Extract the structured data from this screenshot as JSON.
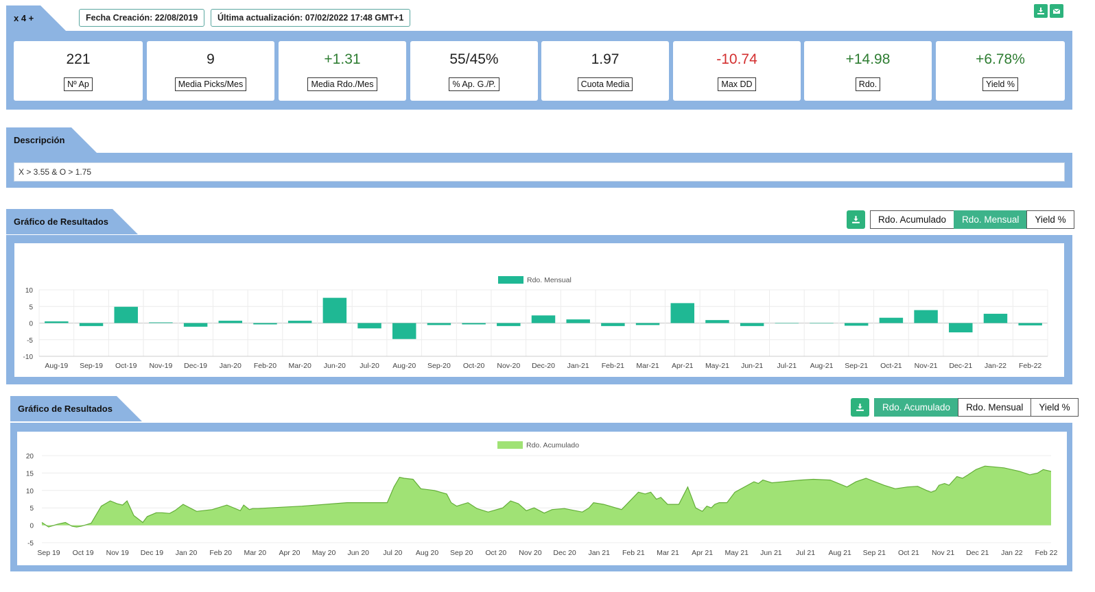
{
  "strategy": {
    "name": "x 4 +",
    "created": "Fecha Creación: 22/08/2019",
    "updated": "Última actualización: 07/02/2022 17:48 GMT+1"
  },
  "stats": [
    {
      "value": "221",
      "label": "Nº Ap",
      "tone": "neutral"
    },
    {
      "value": "9",
      "label": "Media Picks/Mes",
      "tone": "neutral"
    },
    {
      "value": "+1.31",
      "label": "Media Rdo./Mes",
      "tone": "pos"
    },
    {
      "value": "55/45%",
      "label": "% Ap. G./P.",
      "tone": "neutral"
    },
    {
      "value": "1.97",
      "label": "Cuota Media",
      "tone": "neutral"
    },
    {
      "value": "-10.74",
      "label": "Max DD",
      "tone": "neg"
    },
    {
      "value": "+14.98",
      "label": "Rdo.",
      "tone": "pos"
    },
    {
      "value": "+6.78%",
      "label": "Yield %",
      "tone": "pos"
    }
  ],
  "description": {
    "title": "Descripción",
    "text": "X > 3.55 & O > 1.75"
  },
  "chart1": {
    "title": "Gráfico de Resultados",
    "buttons": [
      "Rdo. Acumulado",
      "Rdo. Mensual",
      "Yield %"
    ],
    "active": 1
  },
  "chart2": {
    "title": "Gráfico de Resultados",
    "buttons": [
      "Rdo. Acumulado",
      "Rdo. Mensual",
      "Yield %"
    ],
    "active": 0
  },
  "colors": {
    "band": "#8db4e2",
    "accent": "#2db37d",
    "bar": "#1fb894",
    "area": "#a0e275",
    "areaLine": "#62ad37"
  },
  "chart_data": [
    {
      "type": "bar",
      "categories": [
        "Aug-19",
        "Sep-19",
        "Oct-19",
        "Nov-19",
        "Dec-19",
        "Jan-20",
        "Feb-20",
        "Mar-20",
        "Jun-20",
        "Jul-20",
        "Aug-20",
        "Sep-20",
        "Oct-20",
        "Nov-20",
        "Dec-20",
        "Jan-21",
        "Feb-21",
        "Mar-21",
        "Apr-21",
        "May-21",
        "Jun-21",
        "Jul-21",
        "Aug-21",
        "Sep-21",
        "Oct-21",
        "Nov-21",
        "Dec-21",
        "Jan-22",
        "Feb-22"
      ],
      "series": [
        {
          "name": "Rdo. Mensual",
          "values": [
            0.5,
            -0.9,
            4.9,
            0.2,
            -1.1,
            0.7,
            -0.4,
            0.7,
            7.6,
            -1.6,
            -4.8,
            -0.6,
            -0.4,
            -0.9,
            2.3,
            1.1,
            -0.9,
            -0.6,
            6.0,
            0.9,
            -0.9,
            0,
            0,
            -0.8,
            1.6,
            3.9,
            -2.8,
            2.8,
            -0.7
          ]
        }
      ],
      "ylim": [
        -10,
        10
      ],
      "yticks": [
        10,
        5,
        0,
        -5,
        -10
      ],
      "legend": "top-center"
    },
    {
      "type": "area",
      "x": [
        "2019-08-22",
        "2019-08-28",
        "2019-09-05",
        "2019-09-12",
        "2019-09-18",
        "2019-09-22",
        "2019-09-26",
        "2019-10-05",
        "2019-10-14",
        "2019-10-22",
        "2019-10-28",
        "2019-11-02",
        "2019-11-06",
        "2019-11-12",
        "2019-11-20",
        "2019-11-24",
        "2019-12-02",
        "2019-12-07",
        "2019-12-14",
        "2019-12-19",
        "2019-12-26",
        "2020-01-07",
        "2020-01-21",
        "2020-02-03",
        "2020-02-15",
        "2020-02-18",
        "2020-02-23",
        "2020-02-26",
        "2020-03-02",
        "2020-03-12",
        "2020-04-10",
        "2020-05-20",
        "2020-06-25",
        "2020-07-01",
        "2020-07-06",
        "2020-07-10",
        "2020-07-18",
        "2020-07-25",
        "2020-08-06",
        "2020-08-17",
        "2020-08-21",
        "2020-08-26",
        "2020-09-05",
        "2020-09-13",
        "2020-09-23",
        "2020-10-06",
        "2020-10-13",
        "2020-10-20",
        "2020-10-27",
        "2020-11-03",
        "2020-11-12",
        "2020-11-19",
        "2020-11-30",
        "2020-12-16",
        "2020-12-22",
        "2020-12-26",
        "2021-01-04",
        "2021-01-20",
        "2021-02-04",
        "2021-02-10",
        "2021-02-15",
        "2021-02-20",
        "2021-02-24",
        "2021-03-02",
        "2021-03-12",
        "2021-03-20",
        "2021-03-27",
        "2021-04-02",
        "2021-04-06",
        "2021-04-10",
        "2021-04-13",
        "2021-04-17",
        "2021-04-24",
        "2021-05-01",
        "2021-05-18",
        "2021-05-22",
        "2021-05-26",
        "2021-06-03",
        "2021-06-29",
        "2021-07-10",
        "2021-07-25",
        "2021-08-09",
        "2021-08-17",
        "2021-08-26",
        "2021-09-11",
        "2021-09-21",
        "2021-10-02",
        "2021-10-11",
        "2021-10-19",
        "2021-10-23",
        "2021-10-27",
        "2021-10-30",
        "2021-11-04",
        "2021-11-08",
        "2021-11-15",
        "2021-11-20",
        "2021-11-25",
        "2021-12-02",
        "2021-12-10",
        "2021-12-27",
        "2022-01-10",
        "2022-01-19",
        "2022-01-26",
        "2022-01-31",
        "2022-02-07"
      ],
      "series": [
        {
          "name": "Rdo. Acumulado",
          "values": [
            0.8,
            -0.5,
            0.3,
            0.8,
            -0.3,
            -0.5,
            -0.3,
            0.6,
            5.5,
            7.0,
            6.2,
            5.8,
            7.0,
            2.8,
            0.8,
            2.5,
            3.6,
            3.6,
            3.4,
            4.3,
            6.0,
            4.0,
            4.5,
            5.8,
            4.2,
            5.8,
            4.5,
            4.8,
            4.8,
            5.0,
            5.5,
            6.5,
            6.5,
            11.0,
            13.8,
            13.5,
            13.2,
            10.5,
            10.0,
            9.0,
            6.5,
            5.5,
            6.5,
            4.8,
            3.8,
            5.0,
            7.0,
            6.2,
            4.2,
            5.0,
            3.5,
            4.5,
            4.8,
            3.8,
            5.0,
            6.5,
            6.0,
            4.5,
            9.5,
            9.0,
            9.5,
            7.5,
            8.0,
            6.0,
            6.0,
            11.0,
            5.0,
            4.0,
            5.5,
            5.0,
            6.0,
            6.5,
            6.5,
            9.5,
            12.5,
            12.0,
            13.0,
            12.2,
            13.0,
            13.2,
            13.0,
            11.0,
            12.5,
            13.5,
            11.5,
            10.5,
            11.0,
            11.2,
            10.0,
            9.5,
            10.0,
            11.5,
            12.0,
            11.5,
            14.0,
            13.5,
            14.5,
            16.0,
            17.0,
            16.5,
            15.5,
            14.5,
            15.0,
            16.0,
            15.5
          ]
        }
      ],
      "xticks": [
        "Sep 19",
        "Oct 19",
        "Nov 19",
        "Dec 19",
        "Jan 20",
        "Feb 20",
        "Mar 20",
        "Apr 20",
        "May 20",
        "Jun 20",
        "Jul 20",
        "Aug 20",
        "Sep 20",
        "Oct 20",
        "Nov 20",
        "Dec 20",
        "Jan 21",
        "Feb 21",
        "Mar 21",
        "Apr 21",
        "May 21",
        "Jun 21",
        "Jul 21",
        "Aug 21",
        "Sep 21",
        "Oct 21",
        "Nov 21",
        "Dec 21",
        "Jan 22",
        "Feb 22"
      ],
      "ylim": [
        -5,
        20
      ],
      "yticks": [
        20,
        15,
        10,
        5,
        0,
        -5
      ],
      "legend": "top-center"
    }
  ]
}
